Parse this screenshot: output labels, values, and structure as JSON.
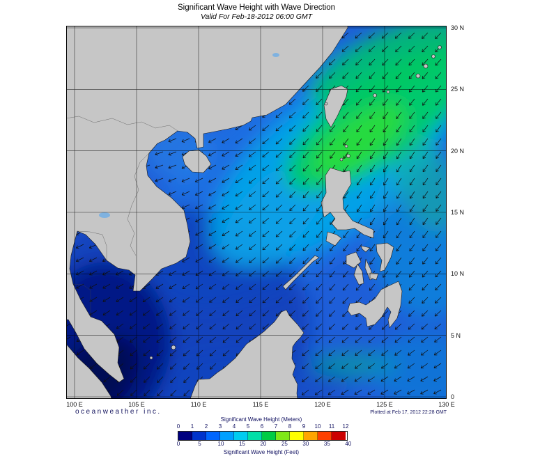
{
  "title": "Significant Wave Height with Wave Direction",
  "subtitle": "Valid For Feb-18-2012 06:00 GMT",
  "credit": "oceanweather inc.",
  "plotted": "Plotted at Feb 17, 2012 22:28 GMT",
  "axes": {
    "lon_labels": [
      "100 E",
      "105 E",
      "110 E",
      "115 E",
      "120 E",
      "125 E",
      "130 E"
    ],
    "lat_labels": [
      "30 N",
      "25 N",
      "20 N",
      "15 N",
      "10 N",
      "5 N",
      "0"
    ]
  },
  "legend": {
    "meters_title": "Significant Wave Height (Meters)",
    "feet_title": "Significant Wave Height (Feet)",
    "meters_ticks": [
      0,
      1,
      2,
      3,
      4,
      5,
      6,
      7,
      8,
      9,
      10,
      11,
      12
    ],
    "feet_ticks": [
      0,
      5,
      10,
      15,
      20,
      25,
      30,
      35,
      40
    ],
    "colors": [
      "#000080",
      "#0033CC",
      "#0066FF",
      "#00A0FF",
      "#00CCF0",
      "#00E0A8",
      "#00CC44",
      "#7FE817",
      "#FFFF00",
      "#FFA500",
      "#FF4000",
      "#CC0000"
    ]
  },
  "map": {
    "land_color": "#C6C6C6",
    "sea_base_color": "#1E5ED8",
    "grid_interval_deg": 5
  }
}
